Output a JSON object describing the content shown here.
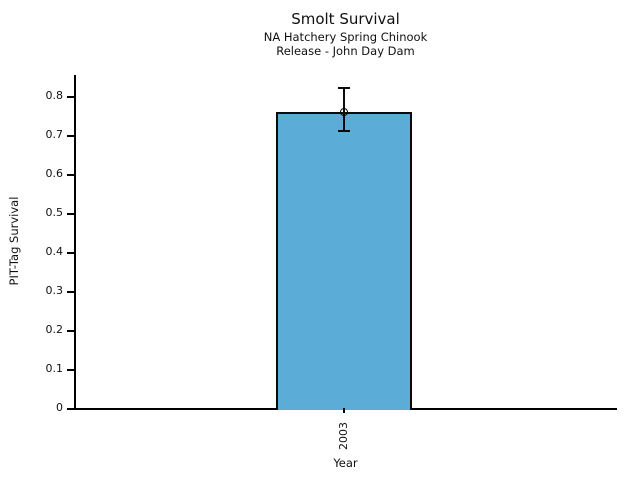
{
  "figure": {
    "title": "Smolt Survival",
    "subtitle1": "NA Hatchery Spring Chinook",
    "subtitle2": "Release - John Day Dam"
  },
  "chart_data": {
    "type": "bar",
    "title": "Smolt Survival",
    "subtitle": [
      "NA Hatchery Spring Chinook",
      "Release - John Day Dam"
    ],
    "categories": [
      "2003"
    ],
    "values": [
      0.76
    ],
    "error_bars": [
      {
        "low": 0.71,
        "high": 0.82
      }
    ],
    "xlabel": "Year",
    "ylabel": "PIT-Tag Survival",
    "ylim": [
      0,
      0.854
    ],
    "yticks": [
      0,
      0.1,
      0.2,
      0.3,
      0.4,
      0.5,
      0.6,
      0.7,
      0.8
    ],
    "ytick_labels": [
      "0",
      "0.1",
      "0.2",
      "0.3",
      "0.4",
      "0.5",
      "0.6",
      "0.7",
      "0.8"
    ],
    "bar_color": "#5BACD6",
    "bar_edge_color": "#0b0b0b",
    "grid": false,
    "legend": false,
    "marker": "open-circle"
  }
}
